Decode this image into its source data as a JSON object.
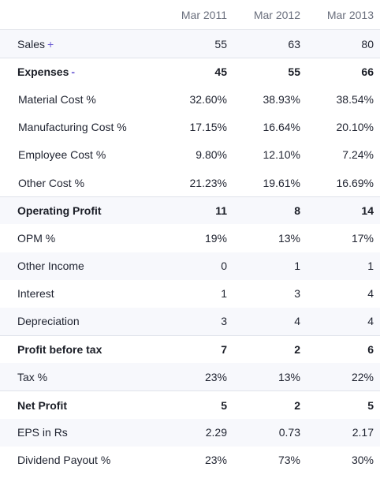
{
  "table": {
    "columns": [
      "Mar 2011",
      "Mar 2012",
      "Mar 2013"
    ],
    "rows": [
      {
        "label": "Sales",
        "toggle": "+",
        "values": [
          "55",
          "63",
          "80"
        ]
      },
      {
        "label": "Expenses",
        "toggle": "-",
        "values": [
          "45",
          "55",
          "66"
        ]
      },
      {
        "label": "Material Cost %",
        "values": [
          "32.60%",
          "38.93%",
          "38.54%"
        ]
      },
      {
        "label": "Manufacturing Cost %",
        "values": [
          "17.15%",
          "16.64%",
          "20.10%"
        ]
      },
      {
        "label": "Employee Cost %",
        "values": [
          "9.80%",
          "12.10%",
          "7.24%"
        ]
      },
      {
        "label": "Other Cost %",
        "values": [
          "21.23%",
          "19.61%",
          "16.69%"
        ]
      },
      {
        "label": "Operating Profit",
        "values": [
          "11",
          "8",
          "14"
        ]
      },
      {
        "label": "OPM %",
        "values": [
          "19%",
          "13%",
          "17%"
        ]
      },
      {
        "label": "Other Income",
        "values": [
          "0",
          "1",
          "1"
        ]
      },
      {
        "label": "Interest",
        "values": [
          "1",
          "3",
          "4"
        ]
      },
      {
        "label": "Depreciation",
        "values": [
          "3",
          "4",
          "4"
        ]
      },
      {
        "label": "Profit before tax",
        "values": [
          "7",
          "2",
          "6"
        ]
      },
      {
        "label": "Tax %",
        "values": [
          "23%",
          "13%",
          "22%"
        ]
      },
      {
        "label": "Net Profit",
        "values": [
          "5",
          "2",
          "5"
        ]
      },
      {
        "label": "EPS in Rs",
        "values": [
          "2.29",
          "0.73",
          "2.17"
        ]
      },
      {
        "label": "Dividend Payout %",
        "values": [
          "23%",
          "73%",
          "30%"
        ]
      }
    ]
  }
}
